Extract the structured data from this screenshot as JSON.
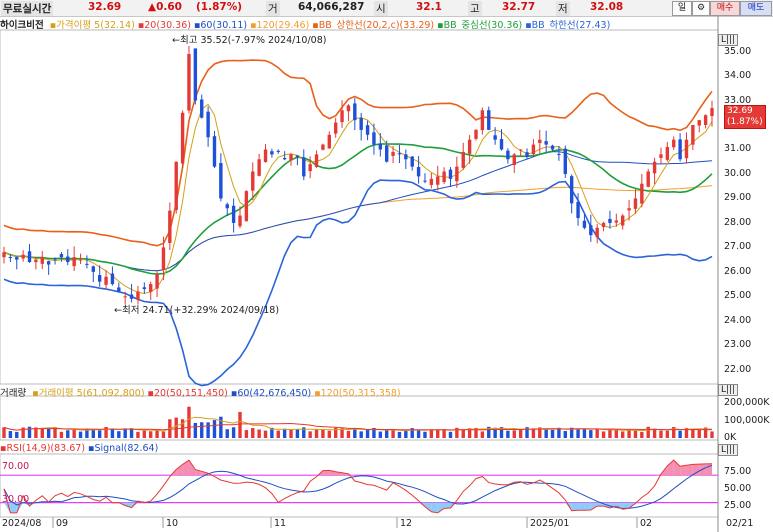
{
  "topbar": {
    "realtime_label": "무료실시간",
    "price": "32.69",
    "change": "▲0.60",
    "change_pct": "(1.87%)",
    "volume_label": "거",
    "volume": "64,066,287",
    "open_label": "시",
    "open": "32.1",
    "high_label": "고",
    "high": "32.77",
    "low_label": "저",
    "low": "32.08",
    "period_button": "일",
    "settings_icon": "gear-icon",
    "buy_button": "매수",
    "sell_button": "매도"
  },
  "price_legend": {
    "name": "하이크비전",
    "items": [
      {
        "label": "가격이평 5(32.14)",
        "color": "#d4a017"
      },
      {
        "label": "20(30.36)",
        "color": "#e53935"
      },
      {
        "label": "60(30.11)",
        "color": "#1e4fc4"
      },
      {
        "label": "120(29.46)",
        "color": "#f0a030"
      },
      {
        "label": "BB_상한선(20,2,c)(33.29)",
        "color": "#e8601a"
      },
      {
        "label": "BB_중심선(30.36)",
        "color": "#1f9e3a"
      },
      {
        "label": "BB_하한선(27.43)",
        "color": "#2b63d8"
      }
    ]
  },
  "annotations": {
    "high": "최고 35.52(-7.97% 2024/10/08)",
    "low": "최저 24.71(+32.29% 2024/09/18)"
  },
  "price_axis": [
    "35.00",
    "34.00",
    "33.00",
    "32.00",
    "31.00",
    "30.00",
    "29.00",
    "28.00",
    "27.00",
    "26.00",
    "25.00",
    "24.00",
    "23.00",
    "22.00"
  ],
  "price_box": {
    "price": "32.69",
    "pct": "(1.87%)"
  },
  "volume_legend": {
    "name": "거래량",
    "items": [
      {
        "label": "거래이평 5(61,092,800)",
        "color": "#d4a017"
      },
      {
        "label": "20(50,151,450)",
        "color": "#e53935"
      },
      {
        "label": "60(42,676,450)",
        "color": "#1e4fc4"
      },
      {
        "label": "120(50,315,358)",
        "color": "#f0a030"
      }
    ]
  },
  "volume_axis": [
    "200,000K",
    "100,000K",
    "0K"
  ],
  "rsi_legend": {
    "items": [
      {
        "label": "RSI(14,9)(83.67)",
        "color": "#e53935"
      },
      {
        "label": "Signal(82.64)",
        "color": "#1e4fc4"
      }
    ]
  },
  "rsi_levels": {
    "upper": "70.00",
    "lower": "30.00"
  },
  "rsi_axis": [
    "75.00",
    "50.00",
    "25.00"
  ],
  "date_axis": [
    "2024/08",
    "09",
    "10",
    "11",
    "12",
    "2025/01",
    "02",
    "02/21"
  ],
  "chart_data": {
    "type": "line",
    "price": {
      "high_annotation": 35.52,
      "low_annotation": 24.71,
      "ylim": [
        21.5,
        35.8
      ],
      "close": [
        26.8,
        26.6,
        26.5,
        26.7,
        26.4,
        26.5,
        26.6,
        26.3,
        26.5,
        26.6,
        26.4,
        26.6,
        26.5,
        26.3,
        26.0,
        25.6,
        25.8,
        25.5,
        25.2,
        25.0,
        24.9,
        25.2,
        25.3,
        25.5,
        25.9,
        27.0,
        28.5,
        30.5,
        32.5,
        34.9,
        33.0,
        32.3,
        31.5,
        30.3,
        29.0,
        28.6,
        28.0,
        28.3,
        29.3,
        30.1,
        30.6,
        31.0,
        30.8,
        30.9,
        30.6,
        30.8,
        30.7,
        29.9,
        30.4,
        30.8,
        31.2,
        31.6,
        32.1,
        32.6,
        32.8,
        32.2,
        31.8,
        31.6,
        31.2,
        31.0,
        30.5,
        30.9,
        30.8,
        30.6,
        30.3,
        29.9,
        29.7,
        29.8,
        29.9,
        30.1,
        29.8,
        30.3,
        30.9,
        31.4,
        31.8,
        32.6,
        31.8,
        31.4,
        31.0,
        30.6,
        30.8,
        31.0,
        30.7,
        31.2,
        31.4,
        31.2,
        31.0,
        30.8,
        30.0,
        28.8,
        28.2,
        27.8,
        27.5,
        27.8,
        28.0,
        28.0,
        28.1,
        28.3,
        28.6,
        29.0,
        29.6,
        30.1,
        30.5,
        30.8,
        31.1,
        31.4,
        30.6,
        31.4,
        32.0,
        32.2,
        32.4,
        32.69
      ]
    },
    "volume_ylim": [
      0,
      230000000
    ],
    "rsi": {
      "ylim": [
        12,
        98
      ],
      "overbought": 70,
      "oversold": 30,
      "last": 83.67,
      "signal_last": 82.64
    }
  }
}
